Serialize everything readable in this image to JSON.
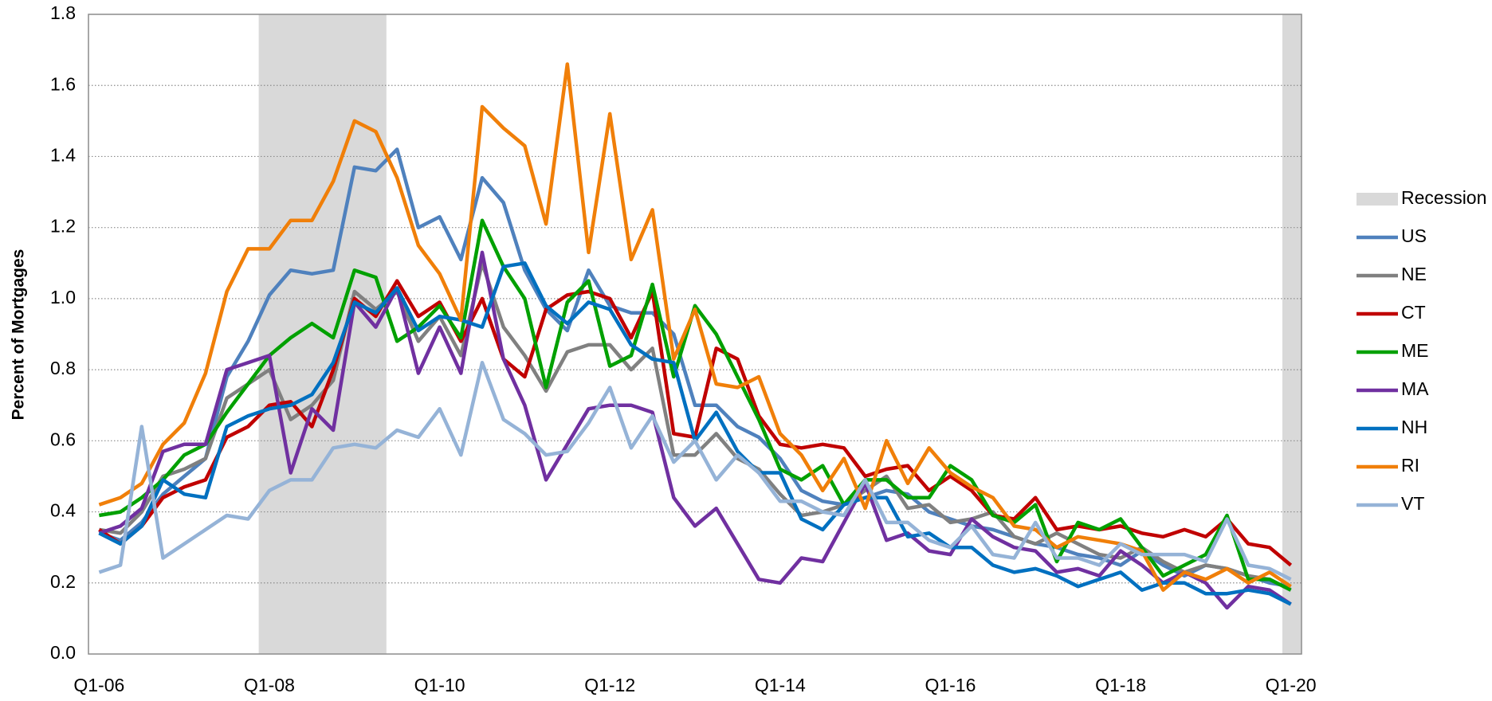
{
  "chart_data": {
    "type": "line",
    "y_label": "Percent of Mortgages",
    "categories": [
      "Q1-06",
      null,
      null,
      null,
      null,
      null,
      null,
      null,
      "Q1-08",
      null,
      null,
      null,
      null,
      null,
      null,
      null,
      "Q1-10",
      null,
      null,
      null,
      null,
      null,
      null,
      null,
      "Q1-12",
      null,
      null,
      null,
      null,
      null,
      null,
      null,
      "Q1-14",
      null,
      null,
      null,
      null,
      null,
      null,
      null,
      "Q1-16",
      null,
      null,
      null,
      null,
      null,
      null,
      null,
      "Q1-18",
      null,
      null,
      null,
      null,
      null,
      null,
      null,
      "Q1-20"
    ],
    "ylim": [
      0,
      1.8
    ],
    "yticks": [
      {
        "value": 0,
        "label": "0.0"
      },
      0.2,
      0.4,
      0.6,
      0.8,
      {
        "value": 1,
        "label": "1.0"
      },
      1.2,
      1.4,
      1.6,
      1.8
    ],
    "grid": true,
    "legend": "right",
    "recessions": {
      "name": "Recession",
      "color": "#d9d9d9",
      "spans": [
        [
          7.5,
          13.5
        ],
        [
          55.6,
          56.5
        ]
      ]
    },
    "series": [
      {
        "name": "US",
        "color": "#4f81bd",
        "values": [
          0.34,
          0.32,
          0.37,
          0.45,
          0.5,
          0.55,
          0.78,
          0.88,
          1.01,
          1.08,
          1.07,
          1.08,
          1.37,
          1.36,
          1.42,
          1.2,
          1.23,
          1.11,
          1.34,
          1.27,
          1.08,
          0.97,
          0.91,
          1.08,
          0.98,
          0.96,
          0.96,
          0.9,
          0.7,
          0.7,
          0.64,
          0.61,
          0.55,
          0.46,
          0.43,
          0.42,
          0.44,
          0.46,
          0.45,
          0.4,
          0.38,
          0.36,
          0.35,
          0.33,
          0.31,
          0.3,
          0.28,
          0.27,
          0.25,
          0.29,
          0.25,
          0.22,
          0.25,
          0.24,
          0.22,
          0.2,
          0.19
        ]
      },
      {
        "name": "NE",
        "color": "#808080",
        "values": [
          0.35,
          0.34,
          0.4,
          0.5,
          0.52,
          0.55,
          0.72,
          0.76,
          0.8,
          0.66,
          0.7,
          0.77,
          1.02,
          0.97,
          1.02,
          0.88,
          0.95,
          0.84,
          1.1,
          0.92,
          0.84,
          0.74,
          0.85,
          0.87,
          0.87,
          0.8,
          0.86,
          0.56,
          0.56,
          0.62,
          0.55,
          0.52,
          0.45,
          0.39,
          0.4,
          0.42,
          0.46,
          0.5,
          0.41,
          0.42,
          0.37,
          0.38,
          0.4,
          0.33,
          0.31,
          0.34,
          0.31,
          0.28,
          0.27,
          0.3,
          0.26,
          0.23,
          0.25,
          0.24,
          0.22,
          0.21,
          0.18
        ]
      },
      {
        "name": "CT",
        "color": "#c00000",
        "values": [
          0.35,
          0.31,
          0.36,
          0.44,
          0.47,
          0.49,
          0.61,
          0.64,
          0.7,
          0.71,
          0.64,
          0.8,
          1.0,
          0.95,
          1.05,
          0.95,
          0.99,
          0.88,
          1.0,
          0.83,
          0.78,
          0.97,
          1.01,
          1.02,
          1.0,
          0.89,
          1.02,
          0.62,
          0.61,
          0.86,
          0.83,
          0.67,
          0.59,
          0.58,
          0.59,
          0.58,
          0.5,
          0.52,
          0.53,
          0.46,
          0.5,
          0.46,
          0.39,
          0.38,
          0.44,
          0.35,
          0.36,
          0.35,
          0.36,
          0.34,
          0.33,
          0.35,
          0.33,
          0.38,
          0.31,
          0.3,
          0.25
        ]
      },
      {
        "name": "ME",
        "color": "#00a000",
        "values": [
          0.39,
          0.4,
          0.44,
          0.49,
          0.56,
          0.59,
          0.68,
          0.76,
          0.84,
          0.89,
          0.93,
          0.89,
          1.08,
          1.06,
          0.88,
          0.92,
          0.98,
          0.89,
          1.22,
          1.09,
          1.0,
          0.75,
          0.99,
          1.05,
          0.81,
          0.84,
          1.04,
          0.78,
          0.98,
          0.9,
          0.78,
          0.66,
          0.52,
          0.49,
          0.53,
          0.42,
          0.49,
          0.49,
          0.44,
          0.44,
          0.53,
          0.49,
          0.39,
          0.37,
          0.42,
          0.26,
          0.37,
          0.35,
          0.38,
          0.3,
          0.22,
          0.25,
          0.28,
          0.39,
          0.21,
          0.21,
          0.18
        ]
      },
      {
        "name": "MA",
        "color": "#7030a0",
        "values": [
          0.34,
          0.36,
          0.41,
          0.57,
          0.59,
          0.59,
          0.8,
          0.82,
          0.84,
          0.51,
          0.69,
          0.63,
          0.99,
          0.92,
          1.03,
          0.79,
          0.92,
          0.79,
          1.13,
          0.83,
          0.7,
          0.49,
          0.59,
          0.69,
          0.7,
          0.7,
          0.68,
          0.44,
          0.36,
          0.41,
          0.31,
          0.21,
          0.2,
          0.27,
          0.26,
          0.37,
          0.48,
          0.32,
          0.34,
          0.29,
          0.28,
          0.38,
          0.33,
          0.3,
          0.29,
          0.23,
          0.24,
          0.22,
          0.29,
          0.25,
          0.2,
          0.23,
          0.2,
          0.13,
          0.19,
          0.18,
          0.14
        ]
      },
      {
        "name": "NH",
        "color": "#0070c0",
        "values": [
          0.34,
          0.31,
          0.36,
          0.49,
          0.45,
          0.44,
          0.64,
          0.67,
          0.69,
          0.7,
          0.73,
          0.82,
          0.99,
          0.96,
          1.03,
          0.91,
          0.95,
          0.94,
          0.92,
          1.09,
          1.1,
          0.98,
          0.93,
          0.99,
          0.97,
          0.87,
          0.83,
          0.82,
          0.6,
          0.68,
          0.57,
          0.51,
          0.51,
          0.38,
          0.35,
          0.42,
          0.44,
          0.44,
          0.33,
          0.34,
          0.3,
          0.3,
          0.25,
          0.23,
          0.24,
          0.22,
          0.19,
          0.21,
          0.23,
          0.18,
          0.2,
          0.2,
          0.17,
          0.17,
          0.18,
          0.17,
          0.14
        ]
      },
      {
        "name": "RI",
        "color": "#f07f09",
        "values": [
          0.42,
          0.44,
          0.48,
          0.59,
          0.65,
          0.79,
          1.02,
          1.14,
          1.14,
          1.22,
          1.22,
          1.33,
          1.5,
          1.47,
          1.34,
          1.15,
          1.07,
          0.94,
          1.54,
          1.48,
          1.43,
          1.21,
          1.66,
          1.13,
          1.52,
          1.11,
          1.25,
          0.83,
          0.97,
          0.76,
          0.75,
          0.78,
          0.62,
          0.56,
          0.46,
          0.55,
          0.41,
          0.6,
          0.48,
          0.58,
          0.51,
          0.47,
          0.44,
          0.36,
          0.35,
          0.3,
          0.33,
          0.32,
          0.31,
          0.29,
          0.18,
          0.23,
          0.21,
          0.24,
          0.2,
          0.23,
          0.19
        ]
      },
      {
        "name": "VT",
        "color": "#95b3d7",
        "values": [
          0.23,
          0.25,
          0.64,
          0.27,
          0.31,
          0.35,
          0.39,
          0.38,
          0.46,
          0.49,
          0.49,
          0.58,
          0.59,
          0.58,
          0.63,
          0.61,
          0.69,
          0.56,
          0.82,
          0.66,
          0.62,
          0.56,
          0.57,
          0.65,
          0.75,
          0.58,
          0.67,
          0.54,
          0.6,
          0.49,
          0.56,
          0.51,
          0.43,
          0.43,
          0.4,
          0.39,
          0.49,
          0.37,
          0.37,
          0.32,
          0.3,
          0.36,
          0.28,
          0.27,
          0.37,
          0.27,
          0.27,
          0.25,
          0.31,
          0.28,
          0.28,
          0.28,
          0.26,
          0.38,
          0.25,
          0.24,
          0.21
        ]
      }
    ]
  }
}
